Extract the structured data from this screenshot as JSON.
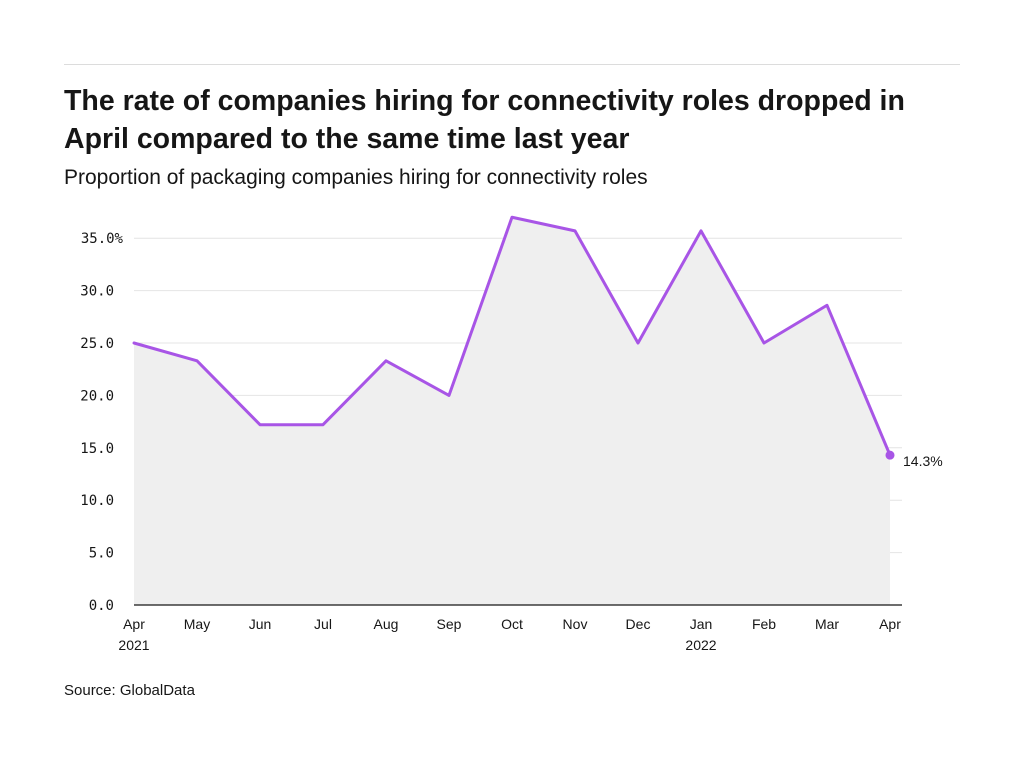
{
  "header": {
    "title": "The rate of companies hiring for connectivity roles dropped in April compared to the same time last year",
    "subtitle": "Proportion of packaging companies hiring for connectivity roles"
  },
  "footer": {
    "source": "Source: GlobalData"
  },
  "colors": {
    "line": "#a855e6",
    "area": "#efefef",
    "grid": "#e4e4e4",
    "axis": "#161616"
  },
  "chart_data": {
    "type": "area",
    "title": "The rate of companies hiring for connectivity roles dropped in April compared to the same time last year",
    "subtitle": "Proportion of packaging companies hiring for connectivity roles",
    "xlabel": "",
    "ylabel": "",
    "categories": [
      "Apr",
      "May",
      "Jun",
      "Jul",
      "Aug",
      "Sep",
      "Oct",
      "Nov",
      "Dec",
      "Jan",
      "Feb",
      "Mar",
      "Apr"
    ],
    "year_labels": [
      "2021",
      "",
      "",
      "",
      "",
      "",
      "",
      "",
      "",
      "2022",
      "",
      "",
      ""
    ],
    "values": [
      25.0,
      23.3,
      17.2,
      17.2,
      23.3,
      20.0,
      37.0,
      35.7,
      25.0,
      35.7,
      25.0,
      28.6,
      14.3
    ],
    "y_ticks": [
      "0.0",
      "5.0",
      "10.0",
      "15.0",
      "20.0",
      "25.0",
      "30.0",
      "35.0%"
    ],
    "y_tick_values": [
      0,
      5,
      10,
      15,
      20,
      25,
      30,
      35
    ],
    "ylim": [
      0,
      37.5
    ],
    "grid": true,
    "legend": "none",
    "end_label": "14.3%"
  }
}
